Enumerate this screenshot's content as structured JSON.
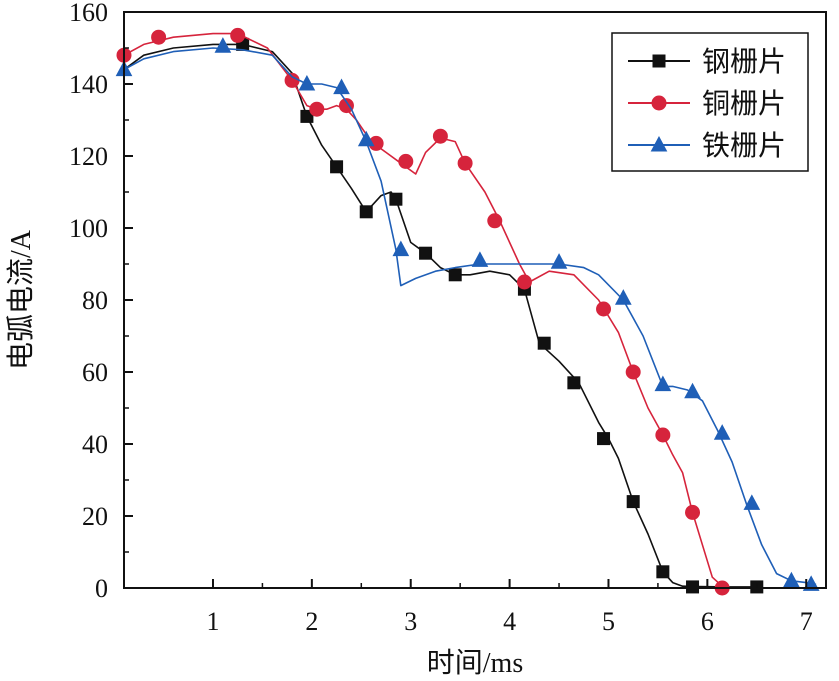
{
  "chart_data": {
    "type": "line",
    "title": "",
    "xlabel": "时间/ms",
    "ylabel": "电弧电流/A",
    "xlim": [
      0.1,
      7.2
    ],
    "ylim": [
      0,
      160
    ],
    "xticks": [
      1,
      2,
      3,
      4,
      5,
      6,
      7
    ],
    "yticks": [
      0,
      20,
      40,
      60,
      80,
      100,
      120,
      140,
      160
    ],
    "grid": false,
    "legend_position": "top-right",
    "series": [
      {
        "name": "钢栅片",
        "color": "#111111",
        "marker": "square",
        "x": [
          0.1,
          0.3,
          0.6,
          1.0,
          1.3,
          1.6,
          1.8,
          1.95,
          2.1,
          2.25,
          2.4,
          2.55,
          2.7,
          2.8,
          2.85,
          3.0,
          3.15,
          3.3,
          3.45,
          3.6,
          3.8,
          4.0,
          4.15,
          4.3,
          4.5,
          4.7,
          4.9,
          5.0,
          5.1,
          5.25,
          5.4,
          5.55,
          5.65,
          5.75,
          5.9,
          6.2,
          6.5
        ],
        "y": [
          144,
          148,
          150,
          151,
          151,
          149,
          143,
          131,
          123,
          117,
          111,
          104.5,
          109,
          110,
          108,
          96,
          93,
          89,
          87,
          87,
          88,
          87,
          83,
          68,
          63,
          57,
          46,
          41.5,
          36,
          24,
          15,
          4.5,
          1.5,
          0.5,
          0.4,
          0.3,
          0.3
        ],
        "marker_x": [
          1.3,
          1.95,
          2.25,
          2.55,
          2.85,
          3.15,
          3.45,
          4.15,
          4.35,
          4.65,
          4.95,
          5.25,
          5.55,
          5.85,
          6.5
        ],
        "marker_y": [
          151,
          131,
          117,
          104.5,
          108,
          93,
          87,
          83,
          68,
          57,
          41.5,
          24,
          4.5,
          0.3,
          0.3
        ]
      },
      {
        "name": "铜栅片",
        "color": "#d6243c",
        "marker": "circle",
        "x": [
          0.1,
          0.3,
          0.6,
          1.0,
          1.25,
          1.55,
          1.8,
          1.95,
          2.05,
          2.15,
          2.25,
          2.35,
          2.45,
          2.6,
          2.75,
          2.9,
          3.05,
          3.15,
          3.3,
          3.45,
          3.55,
          3.75,
          3.9,
          4.1,
          4.2,
          4.4,
          4.65,
          4.9,
          5.1,
          5.25,
          5.4,
          5.55,
          5.65,
          5.75,
          5.85,
          5.95,
          6.05,
          6.15,
          6.2
        ],
        "y": [
          148,
          151,
          153,
          154,
          154,
          150,
          141,
          134,
          133,
          133,
          134,
          133,
          130,
          124,
          121,
          118,
          115,
          121,
          125,
          124,
          118,
          110,
          102,
          90,
          85,
          88,
          87,
          80,
          71,
          60,
          50,
          42.5,
          37,
          32,
          21,
          12,
          3,
          0.5,
          0
        ],
        "marker_x": [
          0.1,
          0.45,
          1.25,
          1.8,
          2.05,
          2.35,
          2.65,
          2.95,
          3.3,
          3.55,
          3.85,
          4.15,
          4.95,
          5.25,
          5.55,
          5.85,
          6.15
        ],
        "marker_y": [
          148,
          153,
          153.5,
          141,
          133,
          134,
          123.5,
          118.5,
          125.5,
          118,
          102,
          85,
          77.5,
          60,
          42.5,
          21,
          0
        ]
      },
      {
        "name": "铁栅片",
        "color": "#1f5fb7",
        "marker": "triangle",
        "x": [
          0.1,
          0.3,
          0.6,
          1.0,
          1.3,
          1.6,
          1.8,
          1.95,
          2.1,
          2.25,
          2.4,
          2.55,
          2.7,
          2.85,
          2.9,
          3.05,
          3.25,
          3.45,
          3.7,
          3.9,
          4.1,
          4.3,
          4.5,
          4.75,
          4.9,
          5.15,
          5.35,
          5.55,
          5.65,
          5.8,
          5.95,
          6.1,
          6.25,
          6.4,
          6.55,
          6.7,
          6.85,
          7.0,
          7.1
        ],
        "y": [
          144,
          147,
          149,
          150,
          149.5,
          148,
          142,
          140,
          140,
          139,
          133,
          124,
          113,
          94,
          84,
          86,
          88,
          89,
          90,
          90,
          90,
          90,
          90,
          89,
          87,
          80,
          70,
          56,
          56,
          55,
          52,
          44,
          35,
          23,
          12,
          4,
          2,
          1.5,
          1
        ],
        "marker_x": [
          0.1,
          1.1,
          1.95,
          2.3,
          2.55,
          2.9,
          3.7,
          4.5,
          5.15,
          5.55,
          5.85,
          6.15,
          6.45,
          6.85,
          7.05
        ],
        "marker_y": [
          144,
          150.5,
          140,
          139,
          124.5,
          94,
          91,
          90.5,
          80.5,
          56.5,
          54.5,
          43,
          23.5,
          2,
          1
        ]
      }
    ]
  }
}
